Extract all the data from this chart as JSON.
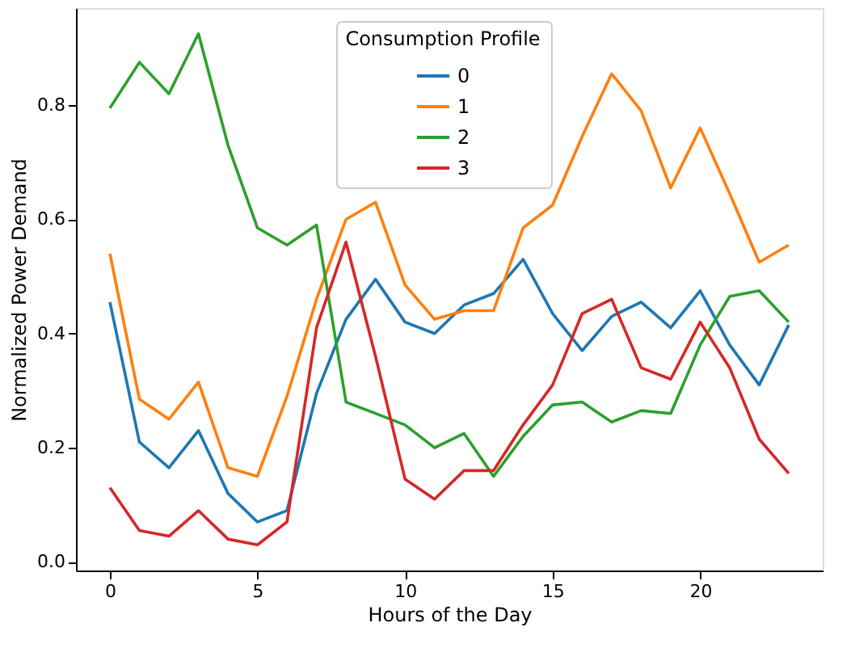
{
  "chart_data": {
    "type": "line",
    "xlabel": "Hours of the Day",
    "ylabel": "Normalized Power Demand",
    "legend_title": "Consumption Profile",
    "legend": "top",
    "grid": false,
    "marker": "none",
    "line_style": "solid",
    "x": [
      0,
      1,
      2,
      3,
      4,
      5,
      6,
      7,
      8,
      9,
      10,
      11,
      12,
      13,
      14,
      15,
      16,
      17,
      18,
      19,
      20,
      21,
      22,
      23
    ],
    "xlim": [
      -1.15,
      24.15
    ],
    "xticks": [
      0,
      5,
      10,
      15,
      20
    ],
    "ylim": [
      -0.015,
      0.97
    ],
    "yticks": [
      {
        "value": 0,
        "label": "0.0"
      },
      0.2,
      0.4,
      0.6,
      0.8
    ],
    "series": [
      {
        "name": "0",
        "color": "#1f77b4",
        "values": [
          0.455,
          0.21,
          0.165,
          0.23,
          0.12,
          0.07,
          0.09,
          0.295,
          0.425,
          0.495,
          0.42,
          0.4,
          0.45,
          0.47,
          0.53,
          0.435,
          0.37,
          0.43,
          0.455,
          0.41,
          0.475,
          0.38,
          0.31,
          0.415
        ]
      },
      {
        "name": "1",
        "color": "#ff7f0e",
        "values": [
          0.54,
          0.285,
          0.25,
          0.315,
          0.165,
          0.15,
          0.29,
          0.46,
          0.6,
          0.63,
          0.485,
          0.425,
          0.44,
          0.44,
          0.585,
          0.625,
          0.745,
          0.855,
          0.79,
          0.655,
          0.76,
          0.645,
          0.525,
          0.555
        ]
      },
      {
        "name": "2",
        "color": "#2ca02c",
        "values": [
          0.795,
          0.875,
          0.82,
          0.925,
          0.73,
          0.585,
          0.555,
          0.59,
          0.28,
          0.26,
          0.24,
          0.2,
          0.225,
          0.15,
          0.22,
          0.275,
          0.28,
          0.245,
          0.265,
          0.26,
          0.38,
          0.465,
          0.475,
          0.42
        ]
      },
      {
        "name": "3",
        "color": "#d62728",
        "values": [
          0.13,
          0.055,
          0.045,
          0.09,
          0.04,
          0.03,
          0.07,
          0.41,
          0.56,
          0.36,
          0.145,
          0.11,
          0.16,
          0.16,
          0.24,
          0.31,
          0.435,
          0.46,
          0.34,
          0.32,
          0.42,
          0.34,
          0.215,
          0.155
        ]
      }
    ]
  }
}
